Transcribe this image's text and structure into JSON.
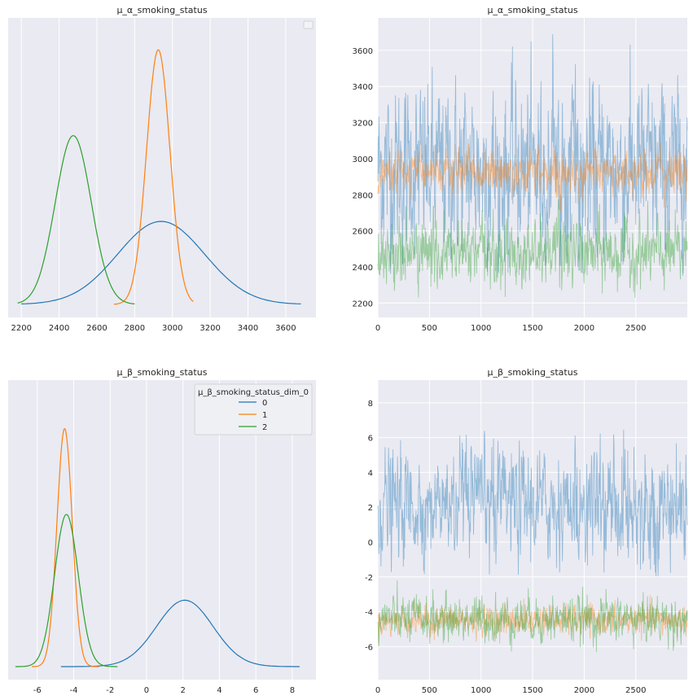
{
  "figure": {
    "background": "#ffffff",
    "panel_background": "#eaeaf2",
    "grid_color": "#ffffff"
  },
  "colors": {
    "blue": "#1f77b4",
    "orange": "#ff7f0e",
    "green": "#2ca02c"
  },
  "chart_data": [
    {
      "id": "alpha_kde",
      "type": "line",
      "title": "μ_α_smoking_status",
      "xlim": [
        2130,
        3760
      ],
      "xticks": [
        2200,
        2400,
        2600,
        2800,
        3000,
        3200,
        3400,
        3600
      ],
      "legend": {
        "placement": "top-right",
        "title": "",
        "entries": []
      },
      "series": [
        {
          "name": "0",
          "color": "#1f77b4",
          "mu": 2940,
          "sd": 230,
          "range": [
            2200,
            3680
          ],
          "peak": 0.3
        },
        {
          "name": "1",
          "color": "#ff7f0e",
          "mu": 2925,
          "sd": 62,
          "range": [
            2690,
            3110
          ],
          "peak": 0.92
        },
        {
          "name": "2",
          "color": "#2ca02c",
          "mu": 2475,
          "sd": 95,
          "range": [
            2180,
            2800
          ],
          "peak": 0.61
        }
      ]
    },
    {
      "id": "alpha_trace",
      "type": "line",
      "title": "μ_α_smoking_status",
      "xlim": [
        0,
        2999
      ],
      "ylim": [
        2120,
        3780
      ],
      "xticks": [
        0,
        500,
        1000,
        1500,
        2000,
        2500
      ],
      "yticks": [
        2200,
        2400,
        2600,
        2800,
        3000,
        3200,
        3400,
        3600
      ],
      "series": [
        {
          "name": "0",
          "color": "#1f77b4",
          "mean": 2940,
          "sd": 230,
          "clip": [
            2350,
            3690
          ]
        },
        {
          "name": "1",
          "color": "#ff7f0e",
          "mean": 2925,
          "sd": 62,
          "clip": [
            2700,
            3110
          ]
        },
        {
          "name": "2",
          "color": "#2ca02c",
          "mean": 2475,
          "sd": 95,
          "clip": [
            2190,
            2790
          ]
        }
      ]
    },
    {
      "id": "beta_kde",
      "type": "line",
      "title": "μ_β_smoking_status",
      "xlim": [
        -7.6,
        9.3
      ],
      "xticks": [
        -6,
        -4,
        -2,
        0,
        2,
        4,
        6,
        8
      ],
      "legend": {
        "placement": "top-right",
        "title": "μ_β_smoking_status_dim_0",
        "entries": [
          "0",
          "1",
          "2"
        ]
      },
      "series": [
        {
          "name": "0",
          "color": "#1f77b4",
          "mu": 2.1,
          "sd": 1.55,
          "range": [
            -4.7,
            8.4
          ],
          "peak": 0.24
        },
        {
          "name": "1",
          "color": "#ff7f0e",
          "mu": -4.5,
          "sd": 0.42,
          "range": [
            -6.3,
            -2.6
          ],
          "peak": 0.86
        },
        {
          "name": "2",
          "color": "#2ca02c",
          "mu": -4.4,
          "sd": 0.65,
          "range": [
            -7.2,
            -1.6
          ],
          "peak": 0.55
        }
      ]
    },
    {
      "id": "beta_trace",
      "type": "line",
      "title": "μ_β_smoking_status",
      "xlim": [
        0,
        2999
      ],
      "ylim": [
        -7.9,
        9.3
      ],
      "xticks": [
        0,
        500,
        1000,
        1500,
        2000,
        2500
      ],
      "yticks": [
        -6,
        -4,
        -2,
        0,
        2,
        4,
        6,
        8
      ],
      "series": [
        {
          "name": "0",
          "color": "#1f77b4",
          "mean": 2.1,
          "sd": 1.55,
          "clip": [
            -2.0,
            8.4
          ]
        },
        {
          "name": "1",
          "color": "#ff7f0e",
          "mean": -4.5,
          "sd": 0.42,
          "clip": [
            -6.3,
            -2.6
          ]
        },
        {
          "name": "2",
          "color": "#2ca02c",
          "mean": -4.4,
          "sd": 0.65,
          "clip": [
            -7.1,
            -1.7
          ]
        }
      ]
    }
  ]
}
